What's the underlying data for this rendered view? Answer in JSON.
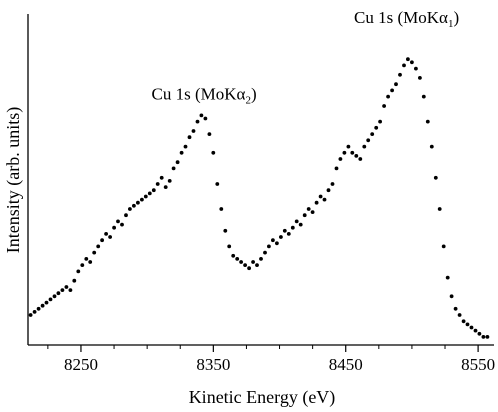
{
  "chart_data": {
    "type": "scatter",
    "xlabel": "Kinetic Energy (eV)",
    "ylabel": "Intensity (arb. units)",
    "xlim": [
      8210,
      8562
    ],
    "ylim": [
      0,
      1
    ],
    "xticks": [
      "8250",
      "8350",
      "8450",
      "8550"
    ],
    "xtick_values": [
      8250,
      8350,
      8450,
      8550
    ],
    "yticks_shown": false,
    "grid": false,
    "marker_color": "#000000",
    "annotations": [
      {
        "text": "Cu 1s (MoKα",
        "sub": "2",
        "close": ")",
        "x": 8343,
        "y": 0.745
      },
      {
        "text": "Cu 1s (MoKα",
        "sub": "1",
        "close": ")",
        "x": 8496,
        "y": 0.99
      }
    ],
    "series": [
      {
        "x": [
          8212,
          8215,
          8218,
          8221,
          8224,
          8227,
          8230,
          8233,
          8236,
          8239,
          8242,
          8245,
          8248,
          8251,
          8254,
          8257,
          8260,
          8263,
          8266,
          8269,
          8272,
          8275,
          8278,
          8281,
          8284,
          8287,
          8290,
          8293,
          8296,
          8299,
          8302,
          8305,
          8308,
          8311,
          8314,
          8317,
          8320,
          8323,
          8326,
          8329,
          8332,
          8335,
          8338,
          8341,
          8344,
          8347,
          8350,
          8353,
          8356,
          8359,
          8362,
          8365,
          8368,
          8371,
          8374,
          8377,
          8380,
          8383,
          8386,
          8389,
          8392,
          8395,
          8398,
          8401,
          8404,
          8407,
          8410,
          8413,
          8416,
          8419,
          8422,
          8425,
          8428,
          8431,
          8434,
          8437,
          8440,
          8443,
          8446,
          8449,
          8452,
          8455,
          8458,
          8461,
          8464,
          8467,
          8470,
          8473,
          8476,
          8479,
          8482,
          8485,
          8488,
          8491,
          8494,
          8497,
          8500,
          8503,
          8506,
          8509,
          8512,
          8515,
          8518,
          8521,
          8524,
          8527,
          8530,
          8533,
          8536,
          8539,
          8542,
          8545,
          8548,
          8551,
          8554,
          8557
        ],
        "values": [
          0.08,
          0.09,
          0.1,
          0.11,
          0.12,
          0.13,
          0.14,
          0.15,
          0.16,
          0.17,
          0.16,
          0.19,
          0.22,
          0.24,
          0.26,
          0.25,
          0.28,
          0.3,
          0.32,
          0.34,
          0.33,
          0.36,
          0.38,
          0.37,
          0.4,
          0.42,
          0.43,
          0.44,
          0.45,
          0.46,
          0.47,
          0.48,
          0.5,
          0.52,
          0.49,
          0.51,
          0.55,
          0.57,
          0.6,
          0.62,
          0.65,
          0.67,
          0.7,
          0.72,
          0.71,
          0.66,
          0.6,
          0.5,
          0.42,
          0.35,
          0.3,
          0.27,
          0.26,
          0.25,
          0.24,
          0.23,
          0.25,
          0.24,
          0.26,
          0.28,
          0.3,
          0.32,
          0.31,
          0.33,
          0.35,
          0.34,
          0.36,
          0.38,
          0.37,
          0.4,
          0.42,
          0.41,
          0.44,
          0.46,
          0.45,
          0.48,
          0.5,
          0.55,
          0.58,
          0.6,
          0.62,
          0.6,
          0.59,
          0.58,
          0.62,
          0.64,
          0.66,
          0.68,
          0.7,
          0.75,
          0.78,
          0.8,
          0.82,
          0.85,
          0.88,
          0.9,
          0.89,
          0.87,
          0.84,
          0.78,
          0.7,
          0.62,
          0.52,
          0.42,
          0.3,
          0.2,
          0.14,
          0.1,
          0.08,
          0.06,
          0.05,
          0.04,
          0.03,
          0.02,
          0.01,
          0.01
        ]
      }
    ]
  }
}
